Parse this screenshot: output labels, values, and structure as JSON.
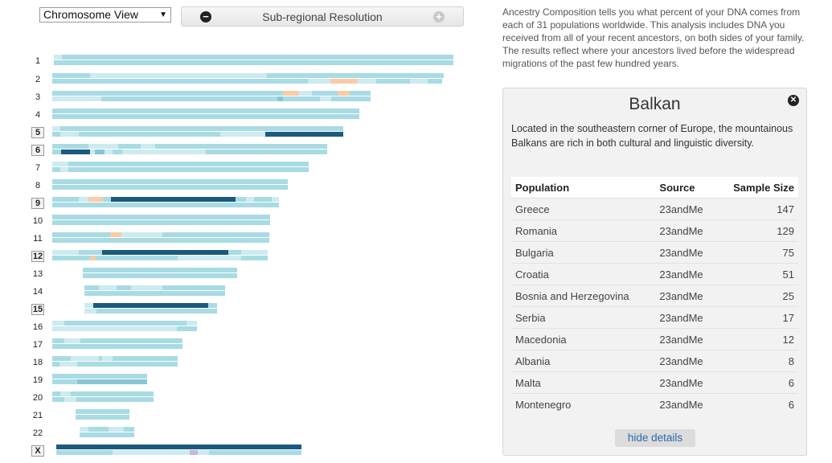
{
  "controls": {
    "view_select": "Chromosome View",
    "resolution_label": "Sub-regional Resolution"
  },
  "colors": {
    "light": "#a8dbe4",
    "pale": "#cdebf1",
    "mid": "#88c6d6",
    "dark": "#1b5a7e",
    "peach": "#f8cda6",
    "purple": "#c9b6d6"
  },
  "chromosomes": [
    {
      "label": "1",
      "boxed": false
    },
    {
      "label": "2",
      "boxed": false
    },
    {
      "label": "3",
      "boxed": false
    },
    {
      "label": "4",
      "boxed": false
    },
    {
      "label": "5",
      "boxed": true
    },
    {
      "label": "6",
      "boxed": true
    },
    {
      "label": "7",
      "boxed": false
    },
    {
      "label": "8",
      "boxed": false
    },
    {
      "label": "9",
      "boxed": true
    },
    {
      "label": "10",
      "boxed": false
    },
    {
      "label": "11",
      "boxed": false
    },
    {
      "label": "12",
      "boxed": true
    },
    {
      "label": "13",
      "boxed": false
    },
    {
      "label": "14",
      "boxed": false
    },
    {
      "label": "15",
      "boxed": true
    },
    {
      "label": "16",
      "boxed": false
    },
    {
      "label": "17",
      "boxed": false
    },
    {
      "label": "18",
      "boxed": false
    },
    {
      "label": "19",
      "boxed": false
    },
    {
      "label": "20",
      "boxed": false
    },
    {
      "label": "21",
      "boxed": false
    },
    {
      "label": "22",
      "boxed": false
    },
    {
      "label": "X",
      "boxed": true
    }
  ],
  "intro_text": "Ancestry Composition tells you what percent of your DNA comes from each of 31 populations worldwide. This analysis includes DNA you received from all of your recent ancestors, on both sides of your family. The results reflect where your ancestors lived before the widespread migrations of the past few hundred years.",
  "panel": {
    "title": "Balkan",
    "description": "Located in the southeastern corner of Europe, the mountainous Balkans are rich in both cultural and linguistic diversity.",
    "columns": [
      "Population",
      "Source",
      "Sample Size"
    ],
    "rows": [
      {
        "population": "Greece",
        "source": "23andMe",
        "size": "147"
      },
      {
        "population": "Romania",
        "source": "23andMe",
        "size": "129"
      },
      {
        "population": "Bulgaria",
        "source": "23andMe",
        "size": "75"
      },
      {
        "population": "Croatia",
        "source": "23andMe",
        "size": "51"
      },
      {
        "population": "Bosnia and Herzegovina",
        "source": "23andMe",
        "size": "25"
      },
      {
        "population": "Serbia",
        "source": "23andMe",
        "size": "17"
      },
      {
        "population": "Macedonia",
        "source": "23andMe",
        "size": "12"
      },
      {
        "population": "Albania",
        "source": "23andMe",
        "size": "8"
      },
      {
        "population": "Malta",
        "source": "23andMe",
        "size": "6"
      },
      {
        "population": "Montenegro",
        "source": "23andMe",
        "size": "6"
      }
    ],
    "hide_label": "hide details"
  }
}
